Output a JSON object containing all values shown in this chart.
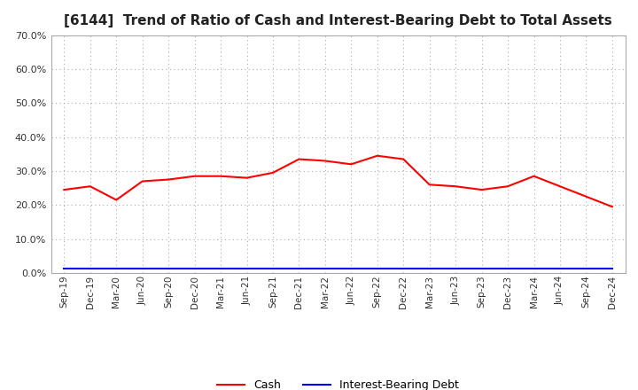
{
  "title": "[6144]  Trend of Ratio of Cash and Interest-Bearing Debt to Total Assets",
  "x_labels": [
    "Sep-19",
    "Dec-19",
    "Mar-20",
    "Jun-20",
    "Sep-20",
    "Dec-20",
    "Mar-21",
    "Jun-21",
    "Sep-21",
    "Dec-21",
    "Mar-22",
    "Jun-22",
    "Sep-22",
    "Dec-22",
    "Mar-23",
    "Jun-23",
    "Sep-23",
    "Dec-23",
    "Mar-24",
    "Jun-24",
    "Sep-24",
    "Dec-24"
  ],
  "cash": [
    24.5,
    25.5,
    21.5,
    27.0,
    27.5,
    28.5,
    28.5,
    28.0,
    29.5,
    33.5,
    33.0,
    32.0,
    34.5,
    33.5,
    26.0,
    25.5,
    24.5,
    25.5,
    28.5,
    25.5,
    22.5,
    19.5
  ],
  "interest_bearing_debt": [
    1.2,
    1.2,
    1.2,
    1.2,
    1.2,
    1.2,
    1.2,
    1.2,
    1.2,
    1.2,
    1.2,
    1.2,
    1.2,
    1.2,
    1.2,
    1.2,
    1.2,
    1.2,
    1.2,
    1.2,
    1.2,
    1.2
  ],
  "cash_color": "#ff0000",
  "debt_color": "#0000ff",
  "background_color": "#ffffff",
  "grid_color": "#aaaaaa",
  "ylim": [
    0.0,
    70.0
  ],
  "yticks": [
    0.0,
    10.0,
    20.0,
    30.0,
    40.0,
    50.0,
    60.0,
    70.0
  ],
  "title_fontsize": 11,
  "legend_cash": "Cash",
  "legend_debt": "Interest-Bearing Debt"
}
